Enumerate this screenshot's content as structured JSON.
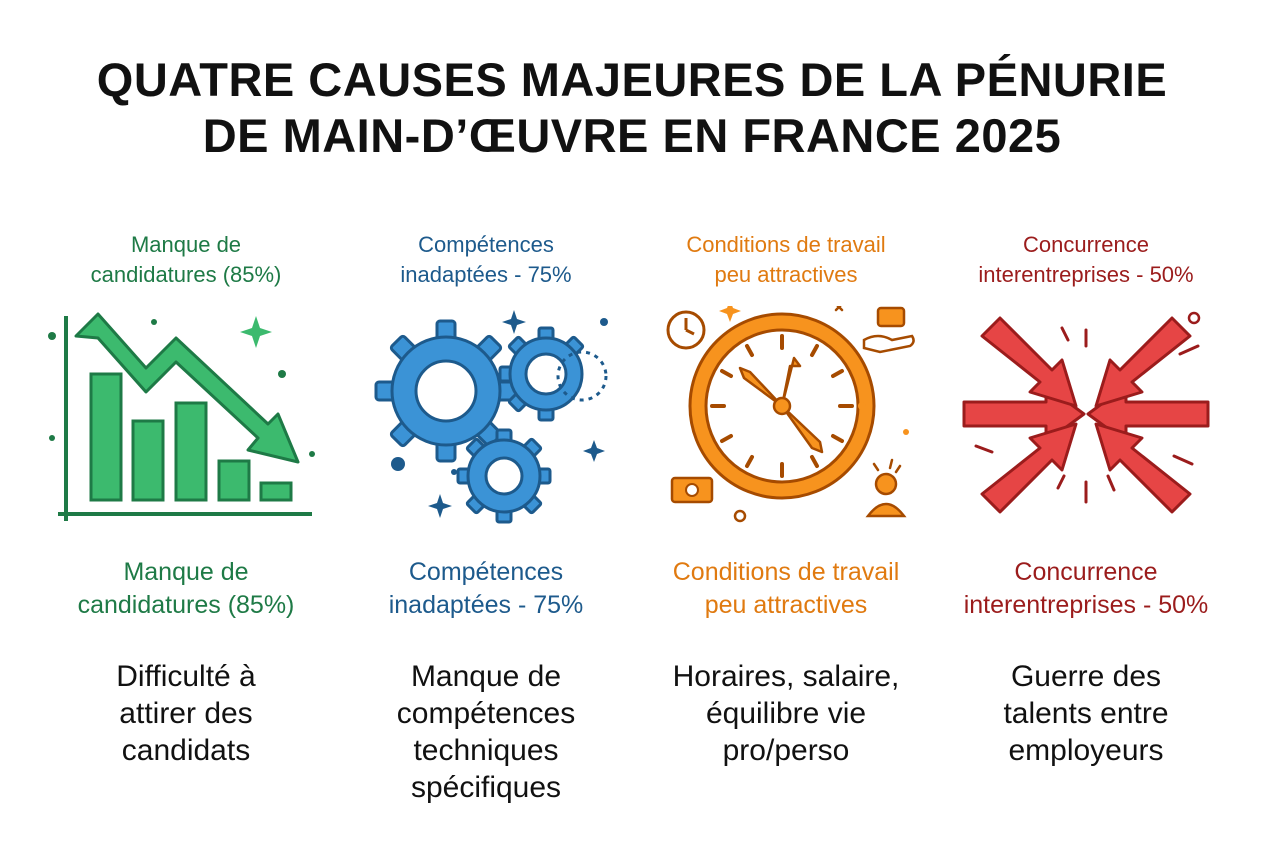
{
  "title": {
    "line1": "QUATRE CAUSES MAJEURES DE LA PÉNURIE",
    "line2": "DE MAIN-D’ŒUVRE EN FRANCE 2025"
  },
  "colors": {
    "green": "#1e7a46",
    "green_fill": "#3cba6e",
    "blue": "#1d5a8c",
    "blue_fill": "#3b93d6",
    "orange": "#e07a10",
    "orange_fill": "#f7931e",
    "red": "#9b1c1c",
    "red_fill": "#e64545"
  },
  "causes": [
    {
      "icon": "declining-bar-chart-icon",
      "top_label": [
        "Manque de",
        "candidatures (85%)"
      ],
      "label": [
        "Manque de",
        "candidatures (85%)"
      ],
      "description": [
        "Difficulté à",
        "attirer des",
        "candidats"
      ]
    },
    {
      "icon": "gears-icon",
      "top_label": [
        "Compétences",
        "inadaptées - 75%"
      ],
      "label": [
        "Compétences",
        "inadaptées - 75%"
      ],
      "description": [
        "Manque de",
        "compétences",
        "techniques",
        "spécifiques"
      ]
    },
    {
      "icon": "clock-icon",
      "top_label": [
        "Conditions de travail",
        "peu attractives"
      ],
      "label": [
        "Conditions de travail",
        "peu attractives"
      ],
      "description": [
        "Horaires, salaire,",
        "équilibre vie",
        "pro/perso"
      ]
    },
    {
      "icon": "converging-arrows-icon",
      "top_label": [
        "Concurrence",
        "interentreprises - 50%"
      ],
      "label": [
        "Concurrence",
        "interentreprises - 50%"
      ],
      "description": [
        "Guerre des",
        "talents entre",
        "employeurs"
      ]
    }
  ]
}
